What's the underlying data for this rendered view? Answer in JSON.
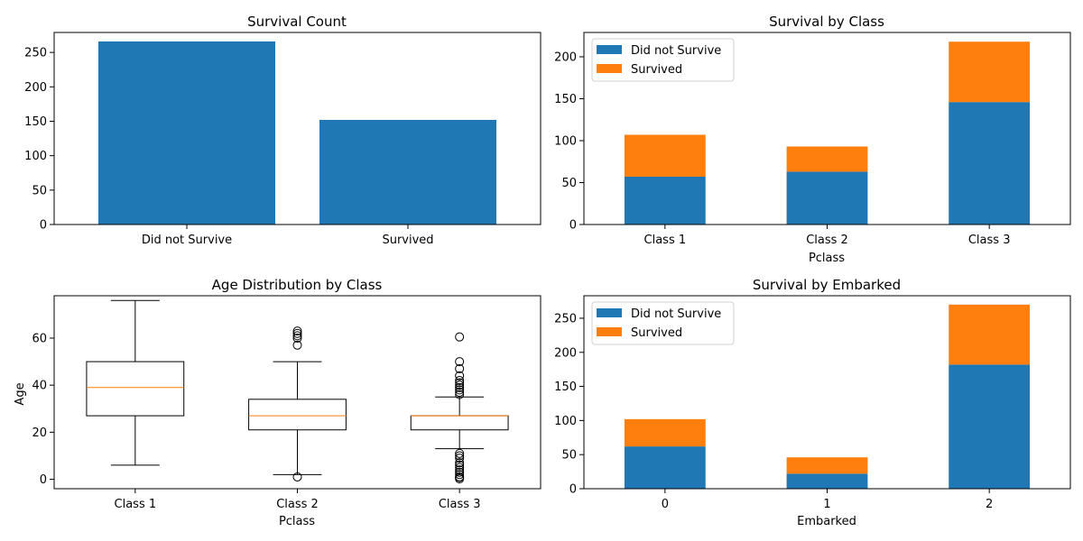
{
  "colors": {
    "did_not_survive": "#1f77b4",
    "survived": "#ff7f0e",
    "median": "#ff7f0e",
    "axis": "#000000"
  },
  "chart_data": [
    {
      "type": "bar",
      "title": "Survival Count",
      "xlabel": "",
      "ylabel": "",
      "categories": [
        "Did not Survive",
        "Survived"
      ],
      "values": [
        266,
        152
      ],
      "ylim": [
        0,
        279
      ],
      "yticks": [
        0,
        50,
        100,
        150,
        200,
        250
      ],
      "grid": false
    },
    {
      "type": "bar",
      "stacked": true,
      "title": "Survival by Class",
      "xlabel": "Pclass",
      "ylabel": "",
      "categories": [
        "Class 1",
        "Class 2",
        "Class 3"
      ],
      "series": [
        {
          "name": "Did not Survive",
          "values": [
            57,
            63,
            146
          ]
        },
        {
          "name": "Survived",
          "values": [
            50,
            30,
            72
          ]
        }
      ],
      "ylim": [
        0,
        229
      ],
      "yticks": [
        0,
        50,
        100,
        150,
        200
      ],
      "legend": "top-left",
      "grid": false
    },
    {
      "type": "box",
      "title": "Age Distribution by Class",
      "xlabel": "Pclass",
      "ylabel": "Age",
      "categories": [
        "Class 1",
        "Class 2",
        "Class 3"
      ],
      "boxes": [
        {
          "whisker_low": 6,
          "q1": 27,
          "median": 39,
          "q3": 50,
          "whisker_high": 76,
          "outliers": []
        },
        {
          "whisker_low": 2,
          "q1": 21,
          "median": 27,
          "q3": 34,
          "whisker_high": 50,
          "outliers": [
            1,
            57,
            60,
            61,
            62,
            63
          ]
        },
        {
          "whisker_low": 13,
          "q1": 21,
          "median": 27,
          "q3": 27,
          "whisker_high": 35,
          "outliers": [
            0.2,
            0.8,
            1,
            2,
            3,
            4,
            5,
            6,
            7,
            9,
            10,
            11,
            36,
            37,
            38,
            39,
            40,
            41,
            42,
            44,
            47,
            50,
            60.5
          ]
        }
      ],
      "ylim": [
        -4,
        78
      ],
      "yticks": [
        0,
        20,
        40,
        60
      ],
      "grid": false
    },
    {
      "type": "bar",
      "stacked": true,
      "title": "Survival by Embarked",
      "xlabel": "Embarked",
      "ylabel": "",
      "categories": [
        "0",
        "1",
        "2"
      ],
      "series": [
        {
          "name": "Did not Survive",
          "values": [
            62,
            22,
            182
          ]
        },
        {
          "name": "Survived",
          "values": [
            40,
            24,
            88
          ]
        }
      ],
      "ylim": [
        0,
        283
      ],
      "yticks": [
        0,
        50,
        100,
        150,
        200,
        250
      ],
      "legend": "top-left",
      "grid": false
    }
  ]
}
